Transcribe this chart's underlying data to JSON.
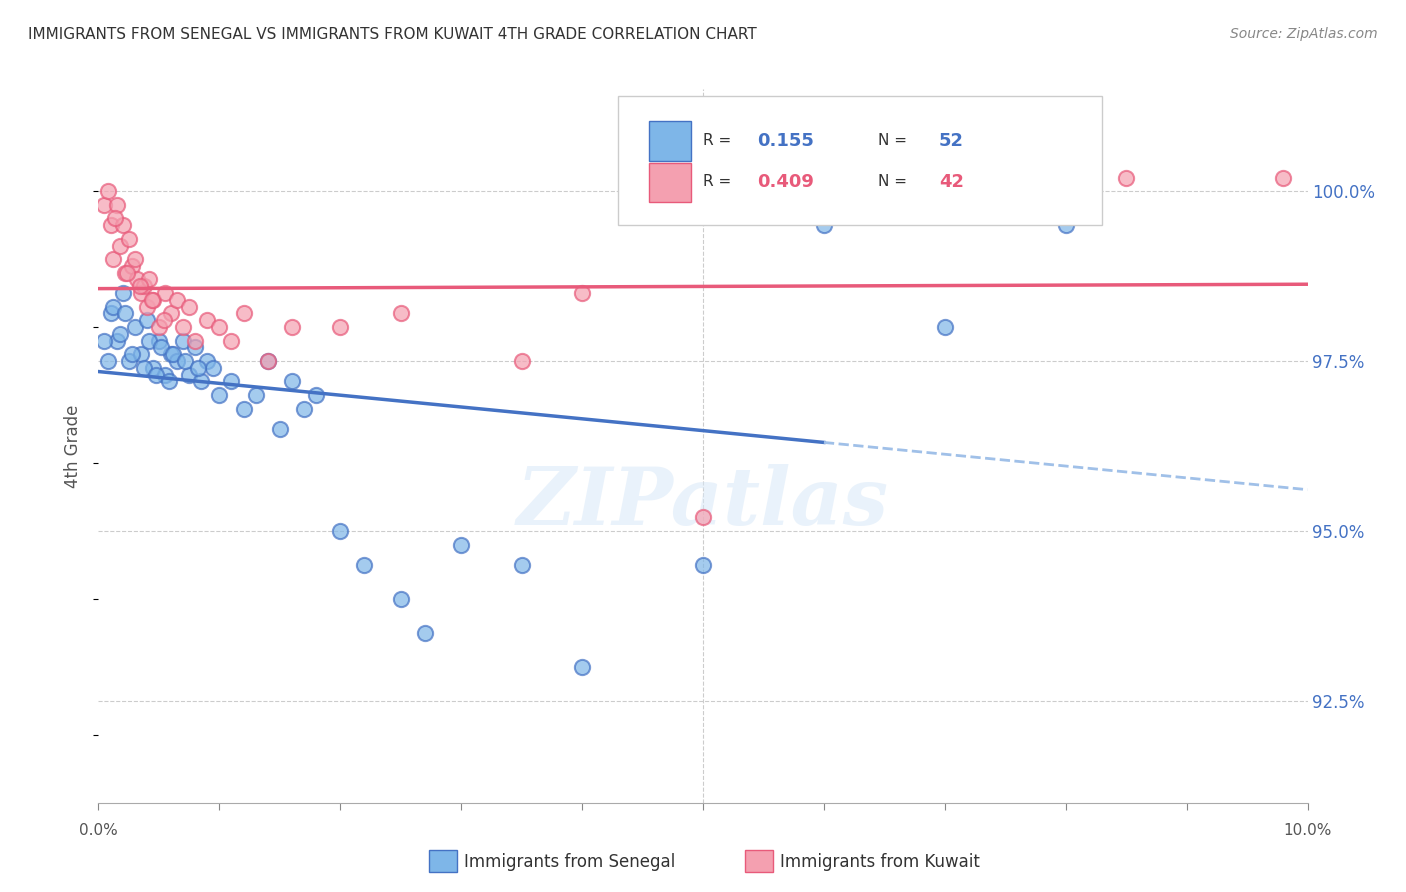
{
  "title": "IMMIGRANTS FROM SENEGAL VS IMMIGRANTS FROM KUWAIT 4TH GRADE CORRELATION CHART",
  "source": "Source: ZipAtlas.com",
  "ylabel": "4th Grade",
  "y_ticks": [
    92.5,
    95.0,
    97.5,
    100.0
  ],
  "y_tick_labels": [
    "92.5%",
    "95.0%",
    "97.5%",
    "100.0%"
  ],
  "xlim": [
    0.0,
    10.0
  ],
  "ylim": [
    91.0,
    101.5
  ],
  "legend_r_senegal": "0.155",
  "legend_n_senegal": "52",
  "legend_r_kuwait": "0.409",
  "legend_n_kuwait": "42",
  "color_senegal": "#7EB6E8",
  "color_kuwait": "#F4A0B0",
  "color_senegal_line": "#4472C4",
  "color_kuwait_line": "#E85A7A",
  "color_dashed": "#A0C0E8",
  "watermark": "ZIPatlas",
  "watermark_color": "#D8E8F8",
  "senegal_x": [
    0.1,
    0.15,
    0.2,
    0.25,
    0.3,
    0.35,
    0.4,
    0.45,
    0.5,
    0.55,
    0.6,
    0.65,
    0.7,
    0.75,
    0.8,
    0.85,
    0.9,
    0.95,
    1.0,
    1.1,
    1.2,
    1.3,
    1.4,
    1.5,
    1.6,
    1.7,
    1.8,
    2.0,
    2.2,
    2.5,
    2.7,
    3.0,
    3.5,
    4.0,
    5.0,
    6.0,
    7.0,
    8.0,
    0.05,
    0.08,
    0.12,
    0.18,
    0.22,
    0.28,
    0.38,
    0.42,
    0.48,
    0.52,
    0.58,
    0.62,
    0.72,
    0.82
  ],
  "senegal_y": [
    98.2,
    97.8,
    98.5,
    97.5,
    98.0,
    97.6,
    98.1,
    97.4,
    97.8,
    97.3,
    97.6,
    97.5,
    97.8,
    97.3,
    97.7,
    97.2,
    97.5,
    97.4,
    97.0,
    97.2,
    96.8,
    97.0,
    97.5,
    96.5,
    97.2,
    96.8,
    97.0,
    95.0,
    94.5,
    94.0,
    93.5,
    94.8,
    94.5,
    93.0,
    94.5,
    99.5,
    98.0,
    99.5,
    97.8,
    97.5,
    98.3,
    97.9,
    98.2,
    97.6,
    97.4,
    97.8,
    97.3,
    97.7,
    97.2,
    97.6,
    97.5,
    97.4
  ],
  "kuwait_x": [
    0.05,
    0.08,
    0.1,
    0.12,
    0.15,
    0.18,
    0.2,
    0.22,
    0.25,
    0.28,
    0.3,
    0.32,
    0.35,
    0.38,
    0.4,
    0.42,
    0.45,
    0.5,
    0.55,
    0.6,
    0.65,
    0.7,
    0.75,
    0.8,
    0.9,
    1.0,
    1.1,
    1.2,
    1.4,
    1.6,
    2.0,
    2.5,
    3.5,
    4.0,
    5.0,
    8.5,
    9.8,
    0.14,
    0.24,
    0.34,
    0.44,
    0.54
  ],
  "kuwait_y": [
    99.8,
    100.0,
    99.5,
    99.0,
    99.8,
    99.2,
    99.5,
    98.8,
    99.3,
    98.9,
    99.0,
    98.7,
    98.5,
    98.6,
    98.3,
    98.7,
    98.4,
    98.0,
    98.5,
    98.2,
    98.4,
    98.0,
    98.3,
    97.8,
    98.1,
    98.0,
    97.8,
    98.2,
    97.5,
    98.0,
    98.0,
    98.2,
    97.5,
    98.5,
    95.2,
    100.2,
    100.2,
    99.6,
    98.8,
    98.6,
    98.4,
    98.1
  ]
}
